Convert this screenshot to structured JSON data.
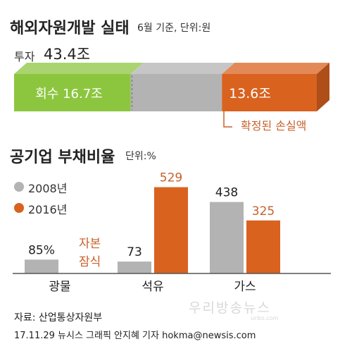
{
  "header": {
    "title": "해외자원개발 실태",
    "subtitle": "6월 기준, 단위:원"
  },
  "investment": {
    "label": "투자",
    "value": "43.4조",
    "recovered_label": "회수 16.7조",
    "loss_value_label": "13.6조",
    "loss_caption": "확정된 손실액"
  },
  "colors": {
    "green": "#8cc63f",
    "gray": "#b3b3b3",
    "orange": "#d9621f",
    "orange_text": "#c8602a"
  },
  "chart2": {
    "title": "공기업 부채비율",
    "unit": "단위:%",
    "legend": [
      "2008년",
      "2016년"
    ],
    "annotation": [
      "자본",
      "잠식"
    ]
  },
  "chart_data": [
    {
      "type": "bar",
      "orientation": "horizontal-stacked",
      "categories": [
        "회수",
        "",
        "확정된 손실액"
      ],
      "values": [
        16.7,
        13.1,
        13.6
      ],
      "total": 43.4,
      "unit": "조원"
    },
    {
      "type": "bar",
      "categories": [
        "광물",
        "석유",
        "가스"
      ],
      "series": [
        {
          "name": "2008년",
          "values": [
            85,
            73,
            438
          ],
          "labels": [
            "85%",
            "73",
            "438"
          ]
        },
        {
          "name": "2016년",
          "values": [
            null,
            529,
            325
          ],
          "labels": [
            "",
            "529",
            "325"
          ]
        }
      ],
      "ylim": [
        0,
        540
      ]
    }
  ],
  "footer": {
    "source": "자료: 산업통상자원부",
    "credit": "17.11.29 뉴시스 그래픽 안지혜 기자 hokma@newsis.com"
  },
  "watermark": {
    "text": "우리방송뉴스",
    "sub": "uribs.com"
  }
}
